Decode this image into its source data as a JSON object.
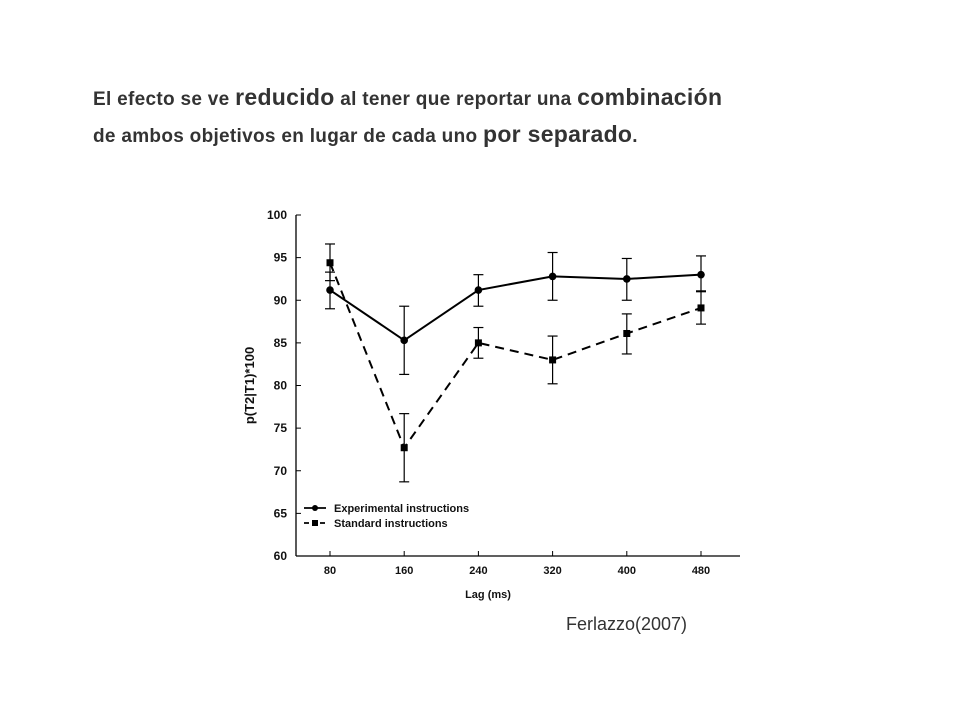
{
  "headline": {
    "line1": {
      "p1": "El efecto se ve ",
      "e1": "reducido",
      "p2": " al tener que reportar una ",
      "e2": "combinación"
    },
    "line2": {
      "p1": "de ambos objetivos en lugar de cada uno ",
      "e1": "por separado",
      "p2": "."
    }
  },
  "source": "Ferlazzo(2007)",
  "chart_data": {
    "type": "line",
    "xlabel": "Lag (ms)",
    "ylabel": "p(T2|T1)*100",
    "categories": [
      "80",
      "160",
      "240",
      "320",
      "400",
      "480"
    ],
    "ylim": [
      60,
      100
    ],
    "yticks": [
      60,
      65,
      70,
      75,
      80,
      85,
      90,
      95,
      100
    ],
    "grid": false,
    "legend_position": "bottom-left",
    "series": [
      {
        "name": "Experimental instructions",
        "line_style": "solid",
        "marker": "circle",
        "color": "#000000",
        "values": [
          91.2,
          85.3,
          91.2,
          92.8,
          92.5,
          93.0
        ],
        "err_low": [
          89.0,
          81.3,
          89.3,
          90.0,
          90.0,
          91.0
        ],
        "err_high": [
          93.3,
          89.3,
          93.0,
          95.6,
          94.9,
          95.2
        ]
      },
      {
        "name": "Standard instructions",
        "line_style": "dashed",
        "marker": "square",
        "color": "#000000",
        "values": [
          94.4,
          72.7,
          85.0,
          83.0,
          86.1,
          89.1
        ],
        "err_low": [
          92.3,
          68.7,
          83.2,
          80.2,
          83.7,
          87.2
        ],
        "err_high": [
          96.6,
          76.7,
          86.8,
          85.8,
          88.4,
          91.1
        ]
      }
    ]
  }
}
